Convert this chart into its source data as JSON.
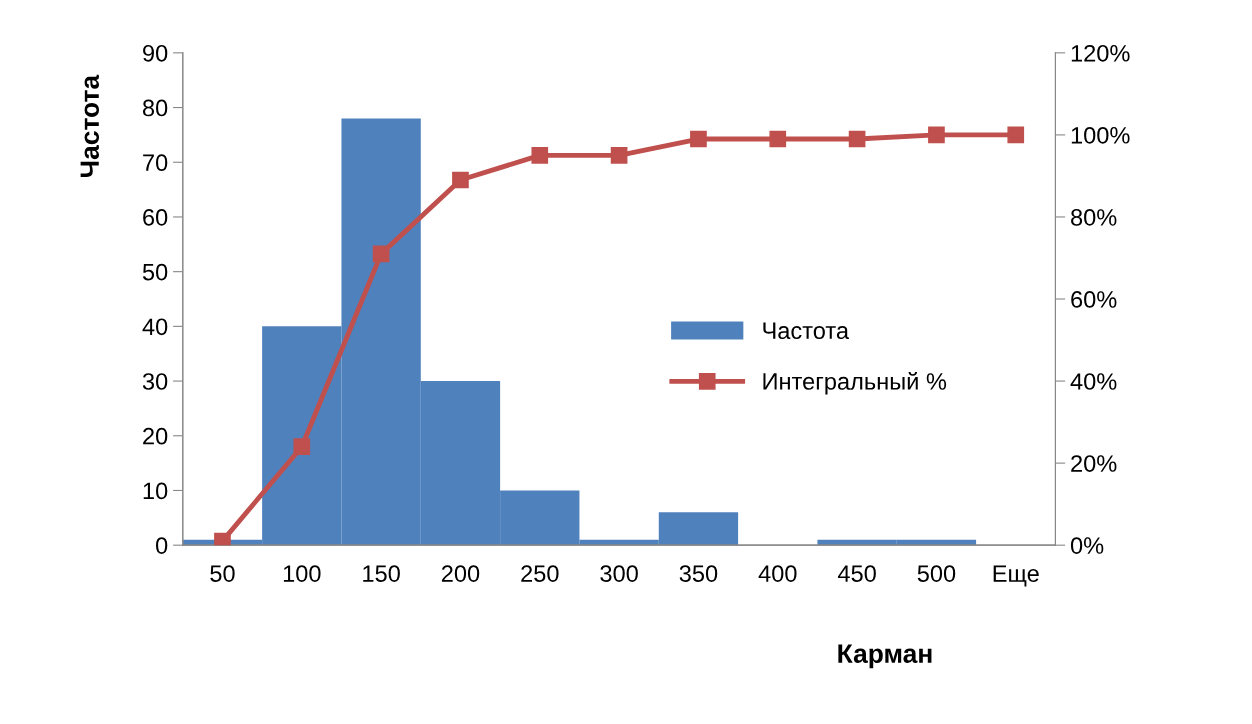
{
  "chart_data": {
    "type": "bar",
    "xlabel": "Карман",
    "ylabel": "Частота",
    "categories": [
      "50",
      "100",
      "150",
      "200",
      "250",
      "300",
      "350",
      "400",
      "450",
      "500",
      "Еще"
    ],
    "series": [
      {
        "name": "Частота",
        "color": "#4f81bd",
        "values": [
          1,
          40,
          78,
          30,
          10,
          1,
          6,
          0,
          1,
          1,
          0
        ]
      },
      {
        "name": "Интегральный %",
        "type": "line",
        "axis": "y2",
        "color": "#c0504d",
        "marker": "square",
        "values": [
          1,
          24,
          71,
          89,
          95,
          95,
          99,
          99,
          99,
          100,
          100
        ]
      }
    ],
    "ylim": [
      0,
      90
    ],
    "yticks": [
      0,
      10,
      20,
      30,
      40,
      50,
      60,
      70,
      80,
      90
    ],
    "y2lim": [
      0,
      120
    ],
    "y2ticks": [
      {
        "value": 0,
        "label": "0%"
      },
      {
        "value": 20,
        "label": "20%"
      },
      {
        "value": 40,
        "label": "40%"
      },
      {
        "value": 60,
        "label": "60%"
      },
      {
        "value": 80,
        "label": "80%"
      },
      {
        "value": 100,
        "label": "100%"
      },
      {
        "value": 120,
        "label": "120%"
      }
    ],
    "grid": false,
    "legend": "right"
  }
}
